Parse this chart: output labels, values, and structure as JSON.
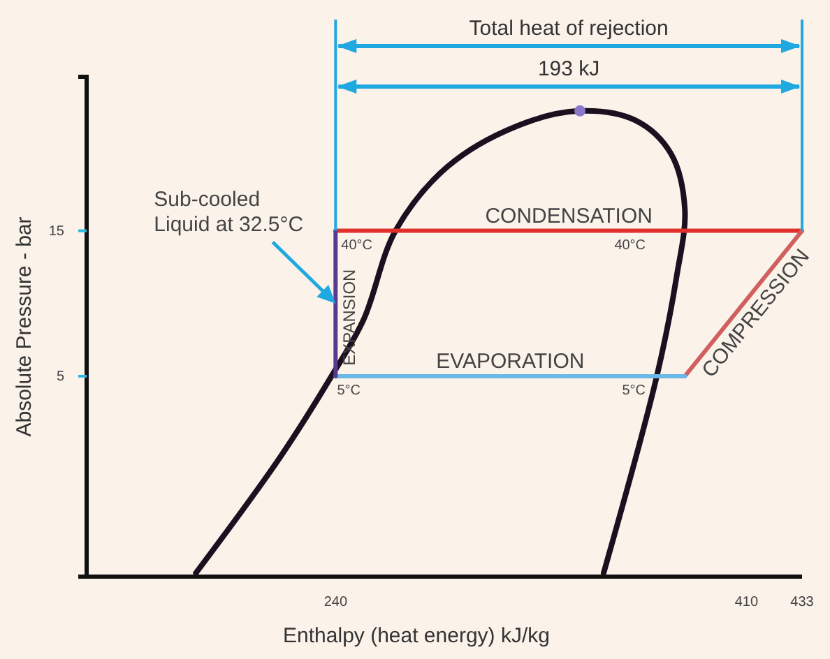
{
  "chart_data": {
    "type": "line",
    "xlabel": "Enthalpy (heat energy) kJ/kg",
    "ylabel": "Absolute Pressure - bar",
    "log": "y",
    "xlim": [
      137,
      433
    ],
    "xticks": [
      240,
      410,
      433
    ],
    "ylim": [
      1.1,
      48
    ],
    "yticks": [
      5,
      15
    ],
    "grid": false,
    "legend": false,
    "marker": "none",
    "line_style": "solid",
    "series": [
      {
        "color": "#1a1020",
        "x": [
          182.2,
          216.9,
          238.3,
          251.6,
          264.8,
          286.2,
          315.1,
          341.1,
          364.2,
          378.7,
          384.5,
          381.0,
          372.9,
          350.9
        ],
        "values": [
          1.13,
          2.7,
          5,
          7.67,
          15,
          24.3,
          33.1,
          37.1,
          34.5,
          26.9,
          17.7,
          10.5,
          5,
          1.13
        ]
      },
      {
        "name": "CONDENSATION",
        "color": "#e0302c",
        "x": [
          240,
          433
        ],
        "values": [
          15,
          15
        ]
      },
      {
        "name": "COMPRESSION",
        "color": "#d06060",
        "x": [
          384.5,
          433
        ],
        "values": [
          5,
          15
        ]
      },
      {
        "name": "EVAPORATION",
        "color": "#6ab8e8",
        "x": [
          240,
          384.5
        ],
        "values": [
          5,
          5
        ]
      },
      {
        "name": "EXPANSION",
        "color": "#5a3a90",
        "x": [
          240,
          240
        ],
        "values": [
          15,
          5
        ]
      },
      {
        "type": "scatter",
        "marker": "circle",
        "color": "#8a78c8",
        "x": [
          341.1
        ],
        "values": [
          37.1
        ]
      }
    ],
    "annotations": [
      "Total heat of rejection",
      "193 kJ",
      "Sub-cooled\nLiquid at 32.5°C",
      {
        "text": "40°C",
        "x": 240,
        "y": 15
      },
      {
        "text": "40°C",
        "x": 372.9,
        "y": 15
      },
      {
        "text": "5°C",
        "x": 238.3,
        "y": 5
      },
      {
        "text": "5°C",
        "x": 372.9,
        "y": 5
      }
    ]
  }
}
